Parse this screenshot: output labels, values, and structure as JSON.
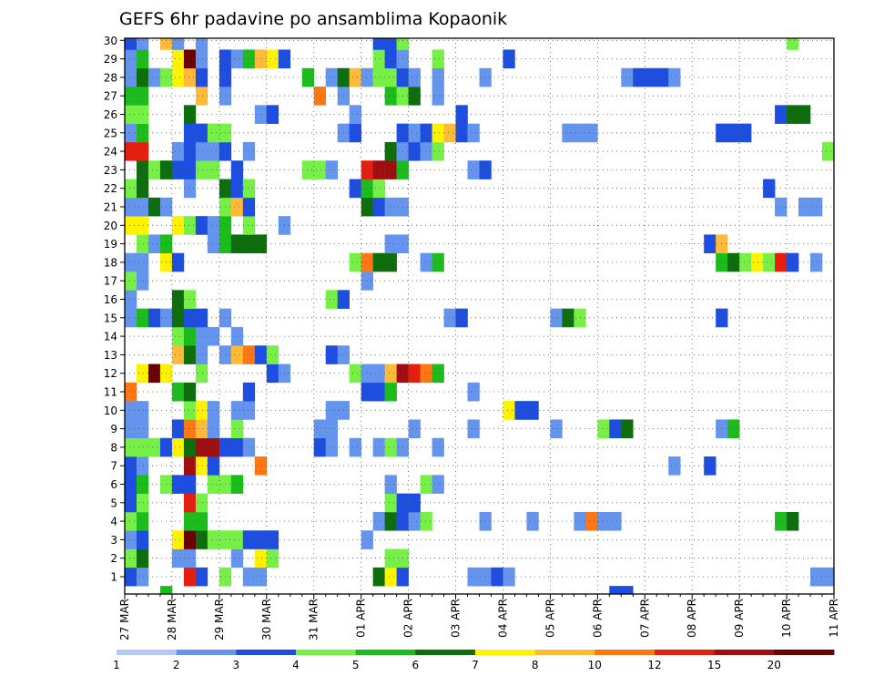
{
  "chart_data": {
    "type": "heatmap",
    "title": "GEFS 6hr padavine po ansamblima Kopaonik",
    "xlabel": "",
    "ylabel": "",
    "x_tick_labels": [
      "27 MAR",
      "28 MAR",
      "29 MAR",
      "30 MAR",
      "31 MAR",
      "01 APR",
      "02 APR",
      "03 APR",
      "04 APR",
      "05 APR",
      "06 APR",
      "07 APR",
      "08 APR",
      "09 APR",
      "10 APR",
      "11 APR"
    ],
    "y_tick_labels": [
      "1",
      "2",
      "3",
      "4",
      "5",
      "6",
      "7",
      "8",
      "9",
      "10",
      "11",
      "12",
      "13",
      "14",
      "15",
      "16",
      "17",
      "18",
      "19",
      "20",
      "21",
      "22",
      "23",
      "24",
      "25",
      "26",
      "27",
      "28",
      "29",
      "30"
    ],
    "x_unit": "6-hour steps",
    "x_range": [
      0,
      60
    ],
    "y_range": [
      1,
      30
    ],
    "grid": true,
    "colorbar": {
      "position": "bottom",
      "tick_labels": [
        "1",
        "2",
        "3",
        "4",
        "5",
        "6",
        "7",
        "8",
        "10",
        "12",
        "15",
        "20"
      ],
      "colors": [
        "#b4c8f5",
        "#6494ee",
        "#1e4ee0",
        "#76f046",
        "#1cbc1c",
        "#0e6e0e",
        "#fff200",
        "#ffba3a",
        "#ff7614",
        "#e51e10",
        "#a00f0f",
        "#6b0000"
      ]
    },
    "cells": {
      "30": [
        [
          0,
          2
        ],
        [
          1,
          1
        ],
        [
          3,
          7
        ],
        [
          4,
          1
        ],
        [
          6,
          1
        ],
        [
          21,
          2
        ],
        [
          22,
          2
        ],
        [
          23,
          3
        ],
        [
          56,
          3
        ]
      ],
      "29": [
        [
          0,
          1
        ],
        [
          1,
          4
        ],
        [
          4,
          6
        ],
        [
          5,
          11
        ],
        [
          6,
          1
        ],
        [
          8,
          2
        ],
        [
          9,
          1
        ],
        [
          10,
          4
        ],
        [
          11,
          7
        ],
        [
          12,
          6
        ],
        [
          13,
          2
        ],
        [
          21,
          3
        ],
        [
          22,
          2
        ],
        [
          23,
          1
        ],
        [
          26,
          3
        ],
        [
          32,
          2
        ]
      ],
      "28": [
        [
          0,
          1
        ],
        [
          1,
          5
        ],
        [
          2,
          1
        ],
        [
          3,
          3
        ],
        [
          4,
          6
        ],
        [
          5,
          7
        ],
        [
          6,
          2
        ],
        [
          8,
          2
        ],
        [
          15,
          4
        ],
        [
          17,
          1
        ],
        [
          18,
          5
        ],
        [
          19,
          7
        ],
        [
          20,
          1
        ],
        [
          21,
          3
        ],
        [
          22,
          3
        ],
        [
          23,
          2
        ],
        [
          24,
          1
        ],
        [
          26,
          1
        ],
        [
          30,
          1
        ],
        [
          42,
          1
        ],
        [
          43,
          2
        ],
        [
          44,
          2
        ],
        [
          45,
          2
        ],
        [
          46,
          1
        ]
      ],
      "27": [
        [
          0,
          4
        ],
        [
          1,
          4
        ],
        [
          6,
          7
        ],
        [
          8,
          1
        ],
        [
          16,
          8
        ],
        [
          18,
          1
        ],
        [
          22,
          4
        ],
        [
          23,
          3
        ],
        [
          24,
          5
        ],
        [
          26,
          1
        ]
      ],
      "26": [
        [
          0,
          3
        ],
        [
          1,
          3
        ],
        [
          5,
          5
        ],
        [
          11,
          1
        ],
        [
          12,
          2
        ],
        [
          19,
          1
        ],
        [
          28,
          2
        ],
        [
          55,
          2
        ],
        [
          56,
          5
        ],
        [
          57,
          5
        ]
      ],
      "25": [
        [
          0,
          1
        ],
        [
          1,
          4
        ],
        [
          5,
          2
        ],
        [
          6,
          2
        ],
        [
          7,
          3
        ],
        [
          8,
          3
        ],
        [
          18,
          1
        ],
        [
          19,
          2
        ],
        [
          23,
          2
        ],
        [
          24,
          1
        ],
        [
          25,
          2
        ],
        [
          26,
          6
        ],
        [
          27,
          7
        ],
        [
          28,
          2
        ],
        [
          29,
          1
        ],
        [
          37,
          1
        ],
        [
          38,
          1
        ],
        [
          39,
          1
        ],
        [
          50,
          2
        ],
        [
          51,
          2
        ],
        [
          52,
          2
        ]
      ],
      "24": [
        [
          0,
          9
        ],
        [
          1,
          9
        ],
        [
          4,
          1
        ],
        [
          5,
          2
        ],
        [
          6,
          1
        ],
        [
          7,
          1
        ],
        [
          8,
          2
        ],
        [
          10,
          1
        ],
        [
          22,
          5
        ],
        [
          23,
          1
        ],
        [
          24,
          2
        ],
        [
          25,
          1
        ],
        [
          26,
          3
        ],
        [
          59,
          3
        ]
      ],
      "23": [
        [
          1,
          5
        ],
        [
          2,
          3
        ],
        [
          3,
          5
        ],
        [
          4,
          2
        ],
        [
          5,
          2
        ],
        [
          6,
          3
        ],
        [
          7,
          3
        ],
        [
          9,
          2
        ],
        [
          15,
          3
        ],
        [
          16,
          3
        ],
        [
          17,
          1
        ],
        [
          20,
          9
        ],
        [
          21,
          10
        ],
        [
          22,
          10
        ],
        [
          23,
          4
        ],
        [
          29,
          1
        ],
        [
          30,
          2
        ]
      ],
      "22": [
        [
          0,
          3
        ],
        [
          1,
          5
        ],
        [
          5,
          1
        ],
        [
          8,
          5
        ],
        [
          9,
          2
        ],
        [
          10,
          3
        ],
        [
          19,
          2
        ],
        [
          20,
          4
        ],
        [
          21,
          3
        ],
        [
          54,
          2
        ]
      ],
      "21": [
        [
          0,
          1
        ],
        [
          1,
          1
        ],
        [
          2,
          5
        ],
        [
          3,
          1
        ],
        [
          8,
          3
        ],
        [
          9,
          7
        ],
        [
          10,
          2
        ],
        [
          20,
          5
        ],
        [
          21,
          2
        ],
        [
          22,
          1
        ],
        [
          23,
          1
        ],
        [
          55,
          1
        ],
        [
          57,
          1
        ],
        [
          58,
          1
        ]
      ],
      "20": [
        [
          0,
          6
        ],
        [
          1,
          6
        ],
        [
          4,
          6
        ],
        [
          5,
          3
        ],
        [
          6,
          2
        ],
        [
          7,
          1
        ],
        [
          8,
          4
        ],
        [
          10,
          3
        ],
        [
          13,
          1
        ]
      ],
      "19": [
        [
          1,
          3
        ],
        [
          2,
          1
        ],
        [
          3,
          4
        ],
        [
          7,
          1
        ],
        [
          8,
          4
        ],
        [
          9,
          5
        ],
        [
          10,
          5
        ],
        [
          11,
          5
        ],
        [
          22,
          1
        ],
        [
          23,
          1
        ],
        [
          49,
          2
        ],
        [
          50,
          7
        ]
      ],
      "18": [
        [
          0,
          1
        ],
        [
          1,
          1
        ],
        [
          3,
          6
        ],
        [
          4,
          2
        ],
        [
          19,
          3
        ],
        [
          20,
          8
        ],
        [
          21,
          5
        ],
        [
          22,
          5
        ],
        [
          25,
          1
        ],
        [
          26,
          4
        ],
        [
          50,
          4
        ],
        [
          51,
          5
        ],
        [
          52,
          3
        ],
        [
          53,
          6
        ],
        [
          54,
          3
        ],
        [
          55,
          9
        ],
        [
          56,
          2
        ],
        [
          58,
          1
        ],
        [
          60,
          3
        ]
      ],
      "17": [
        [
          0,
          3
        ],
        [
          1,
          1
        ],
        [
          20,
          1
        ]
      ],
      "16": [
        [
          0,
          1
        ],
        [
          4,
          5
        ],
        [
          5,
          3
        ],
        [
          17,
          3
        ],
        [
          18,
          2
        ]
      ],
      "15": [
        [
          0,
          1
        ],
        [
          1,
          4
        ],
        [
          2,
          2
        ],
        [
          3,
          1
        ],
        [
          4,
          5
        ],
        [
          5,
          2
        ],
        [
          6,
          2
        ],
        [
          8,
          1
        ],
        [
          27,
          1
        ],
        [
          28,
          2
        ],
        [
          36,
          1
        ],
        [
          37,
          5
        ],
        [
          38,
          3
        ],
        [
          50,
          2
        ]
      ],
      "14": [
        [
          4,
          3
        ],
        [
          5,
          4
        ],
        [
          6,
          1
        ],
        [
          7,
          1
        ],
        [
          9,
          1
        ]
      ],
      "13": [
        [
          4,
          7
        ],
        [
          5,
          5
        ],
        [
          6,
          1
        ],
        [
          8,
          1
        ],
        [
          9,
          7
        ],
        [
          10,
          8
        ],
        [
          11,
          2
        ],
        [
          12,
          3
        ],
        [
          17,
          2
        ],
        [
          18,
          1
        ]
      ],
      "12": [
        [
          1,
          6
        ],
        [
          2,
          11
        ],
        [
          3,
          6
        ],
        [
          6,
          3
        ],
        [
          12,
          2
        ],
        [
          13,
          1
        ],
        [
          19,
          3
        ],
        [
          20,
          1
        ],
        [
          21,
          1
        ],
        [
          22,
          7
        ],
        [
          23,
          10
        ],
        [
          24,
          9
        ],
        [
          25,
          8
        ],
        [
          26,
          4
        ]
      ],
      "11": [
        [
          0,
          8
        ],
        [
          4,
          4
        ],
        [
          5,
          5
        ],
        [
          10,
          2
        ],
        [
          20,
          2
        ],
        [
          21,
          2
        ],
        [
          22,
          4
        ],
        [
          29,
          1
        ]
      ],
      "10": [
        [
          0,
          1
        ],
        [
          1,
          1
        ],
        [
          5,
          3
        ],
        [
          6,
          6
        ],
        [
          7,
          1
        ],
        [
          9,
          1
        ],
        [
          10,
          1
        ],
        [
          17,
          1
        ],
        [
          18,
          1
        ],
        [
          32,
          6
        ],
        [
          33,
          2
        ],
        [
          34,
          2
        ]
      ],
      "9": [
        [
          0,
          1
        ],
        [
          1,
          1
        ],
        [
          4,
          2
        ],
        [
          5,
          8
        ],
        [
          6,
          7
        ],
        [
          7,
          1
        ],
        [
          9,
          3
        ],
        [
          16,
          1
        ],
        [
          17,
          1
        ],
        [
          24,
          1
        ],
        [
          29,
          1
        ],
        [
          36,
          1
        ],
        [
          40,
          3
        ],
        [
          41,
          2
        ],
        [
          42,
          5
        ],
        [
          50,
          1
        ],
        [
          51,
          4
        ]
      ],
      "8": [
        [
          0,
          3
        ],
        [
          1,
          3
        ],
        [
          2,
          3
        ],
        [
          3,
          2
        ],
        [
          4,
          6
        ],
        [
          5,
          5
        ],
        [
          6,
          10
        ],
        [
          7,
          10
        ],
        [
          8,
          2
        ],
        [
          9,
          2
        ],
        [
          10,
          1
        ],
        [
          16,
          2
        ],
        [
          17,
          1
        ],
        [
          19,
          1
        ],
        [
          21,
          1
        ],
        [
          22,
          3
        ],
        [
          23,
          1
        ],
        [
          26,
          1
        ]
      ],
      "7": [
        [
          0,
          2
        ],
        [
          1,
          1
        ],
        [
          5,
          10
        ],
        [
          6,
          6
        ],
        [
          7,
          2
        ],
        [
          11,
          8
        ],
        [
          46,
          1
        ],
        [
          49,
          2
        ]
      ],
      "6": [
        [
          0,
          2
        ],
        [
          1,
          4
        ],
        [
          3,
          3
        ],
        [
          4,
          2
        ],
        [
          5,
          2
        ],
        [
          7,
          3
        ],
        [
          8,
          3
        ],
        [
          9,
          4
        ],
        [
          22,
          1
        ],
        [
          25,
          3
        ],
        [
          26,
          1
        ]
      ],
      "5": [
        [
          0,
          2
        ],
        [
          1,
          3
        ],
        [
          5,
          9
        ],
        [
          6,
          3
        ],
        [
          22,
          3
        ],
        [
          23,
          2
        ],
        [
          24,
          2
        ]
      ],
      "4": [
        [
          0,
          3
        ],
        [
          1,
          4
        ],
        [
          5,
          4
        ],
        [
          6,
          4
        ],
        [
          21,
          1
        ],
        [
          22,
          5
        ],
        [
          23,
          2
        ],
        [
          24,
          1
        ],
        [
          25,
          3
        ],
        [
          30,
          1
        ],
        [
          34,
          1
        ],
        [
          38,
          1
        ],
        [
          39,
          8
        ],
        [
          40,
          1
        ],
        [
          41,
          1
        ],
        [
          55,
          4
        ],
        [
          56,
          5
        ]
      ],
      "3": [
        [
          0,
          1
        ],
        [
          1,
          2
        ],
        [
          4,
          6
        ],
        [
          5,
          11
        ],
        [
          6,
          5
        ],
        [
          7,
          3
        ],
        [
          8,
          3
        ],
        [
          9,
          3
        ],
        [
          10,
          2
        ],
        [
          11,
          2
        ],
        [
          12,
          2
        ],
        [
          20,
          1
        ]
      ],
      "2": [
        [
          0,
          3
        ],
        [
          1,
          5
        ],
        [
          4,
          1
        ],
        [
          5,
          1
        ],
        [
          9,
          1
        ],
        [
          11,
          6
        ],
        [
          12,
          3
        ],
        [
          22,
          3
        ],
        [
          23,
          3
        ]
      ],
      "1": [
        [
          0,
          2
        ],
        [
          1,
          1
        ],
        [
          5,
          9
        ],
        [
          6,
          2
        ],
        [
          8,
          3
        ],
        [
          10,
          1
        ],
        [
          11,
          1
        ],
        [
          21,
          5
        ],
        [
          22,
          6
        ],
        [
          23,
          2
        ],
        [
          29,
          1
        ],
        [
          30,
          1
        ],
        [
          31,
          2
        ],
        [
          32,
          1
        ],
        [
          58,
          1
        ],
        [
          59,
          1
        ]
      ],
      "0": [
        [
          3,
          4
        ],
        [
          41,
          2
        ],
        [
          42,
          2
        ]
      ]
    }
  }
}
